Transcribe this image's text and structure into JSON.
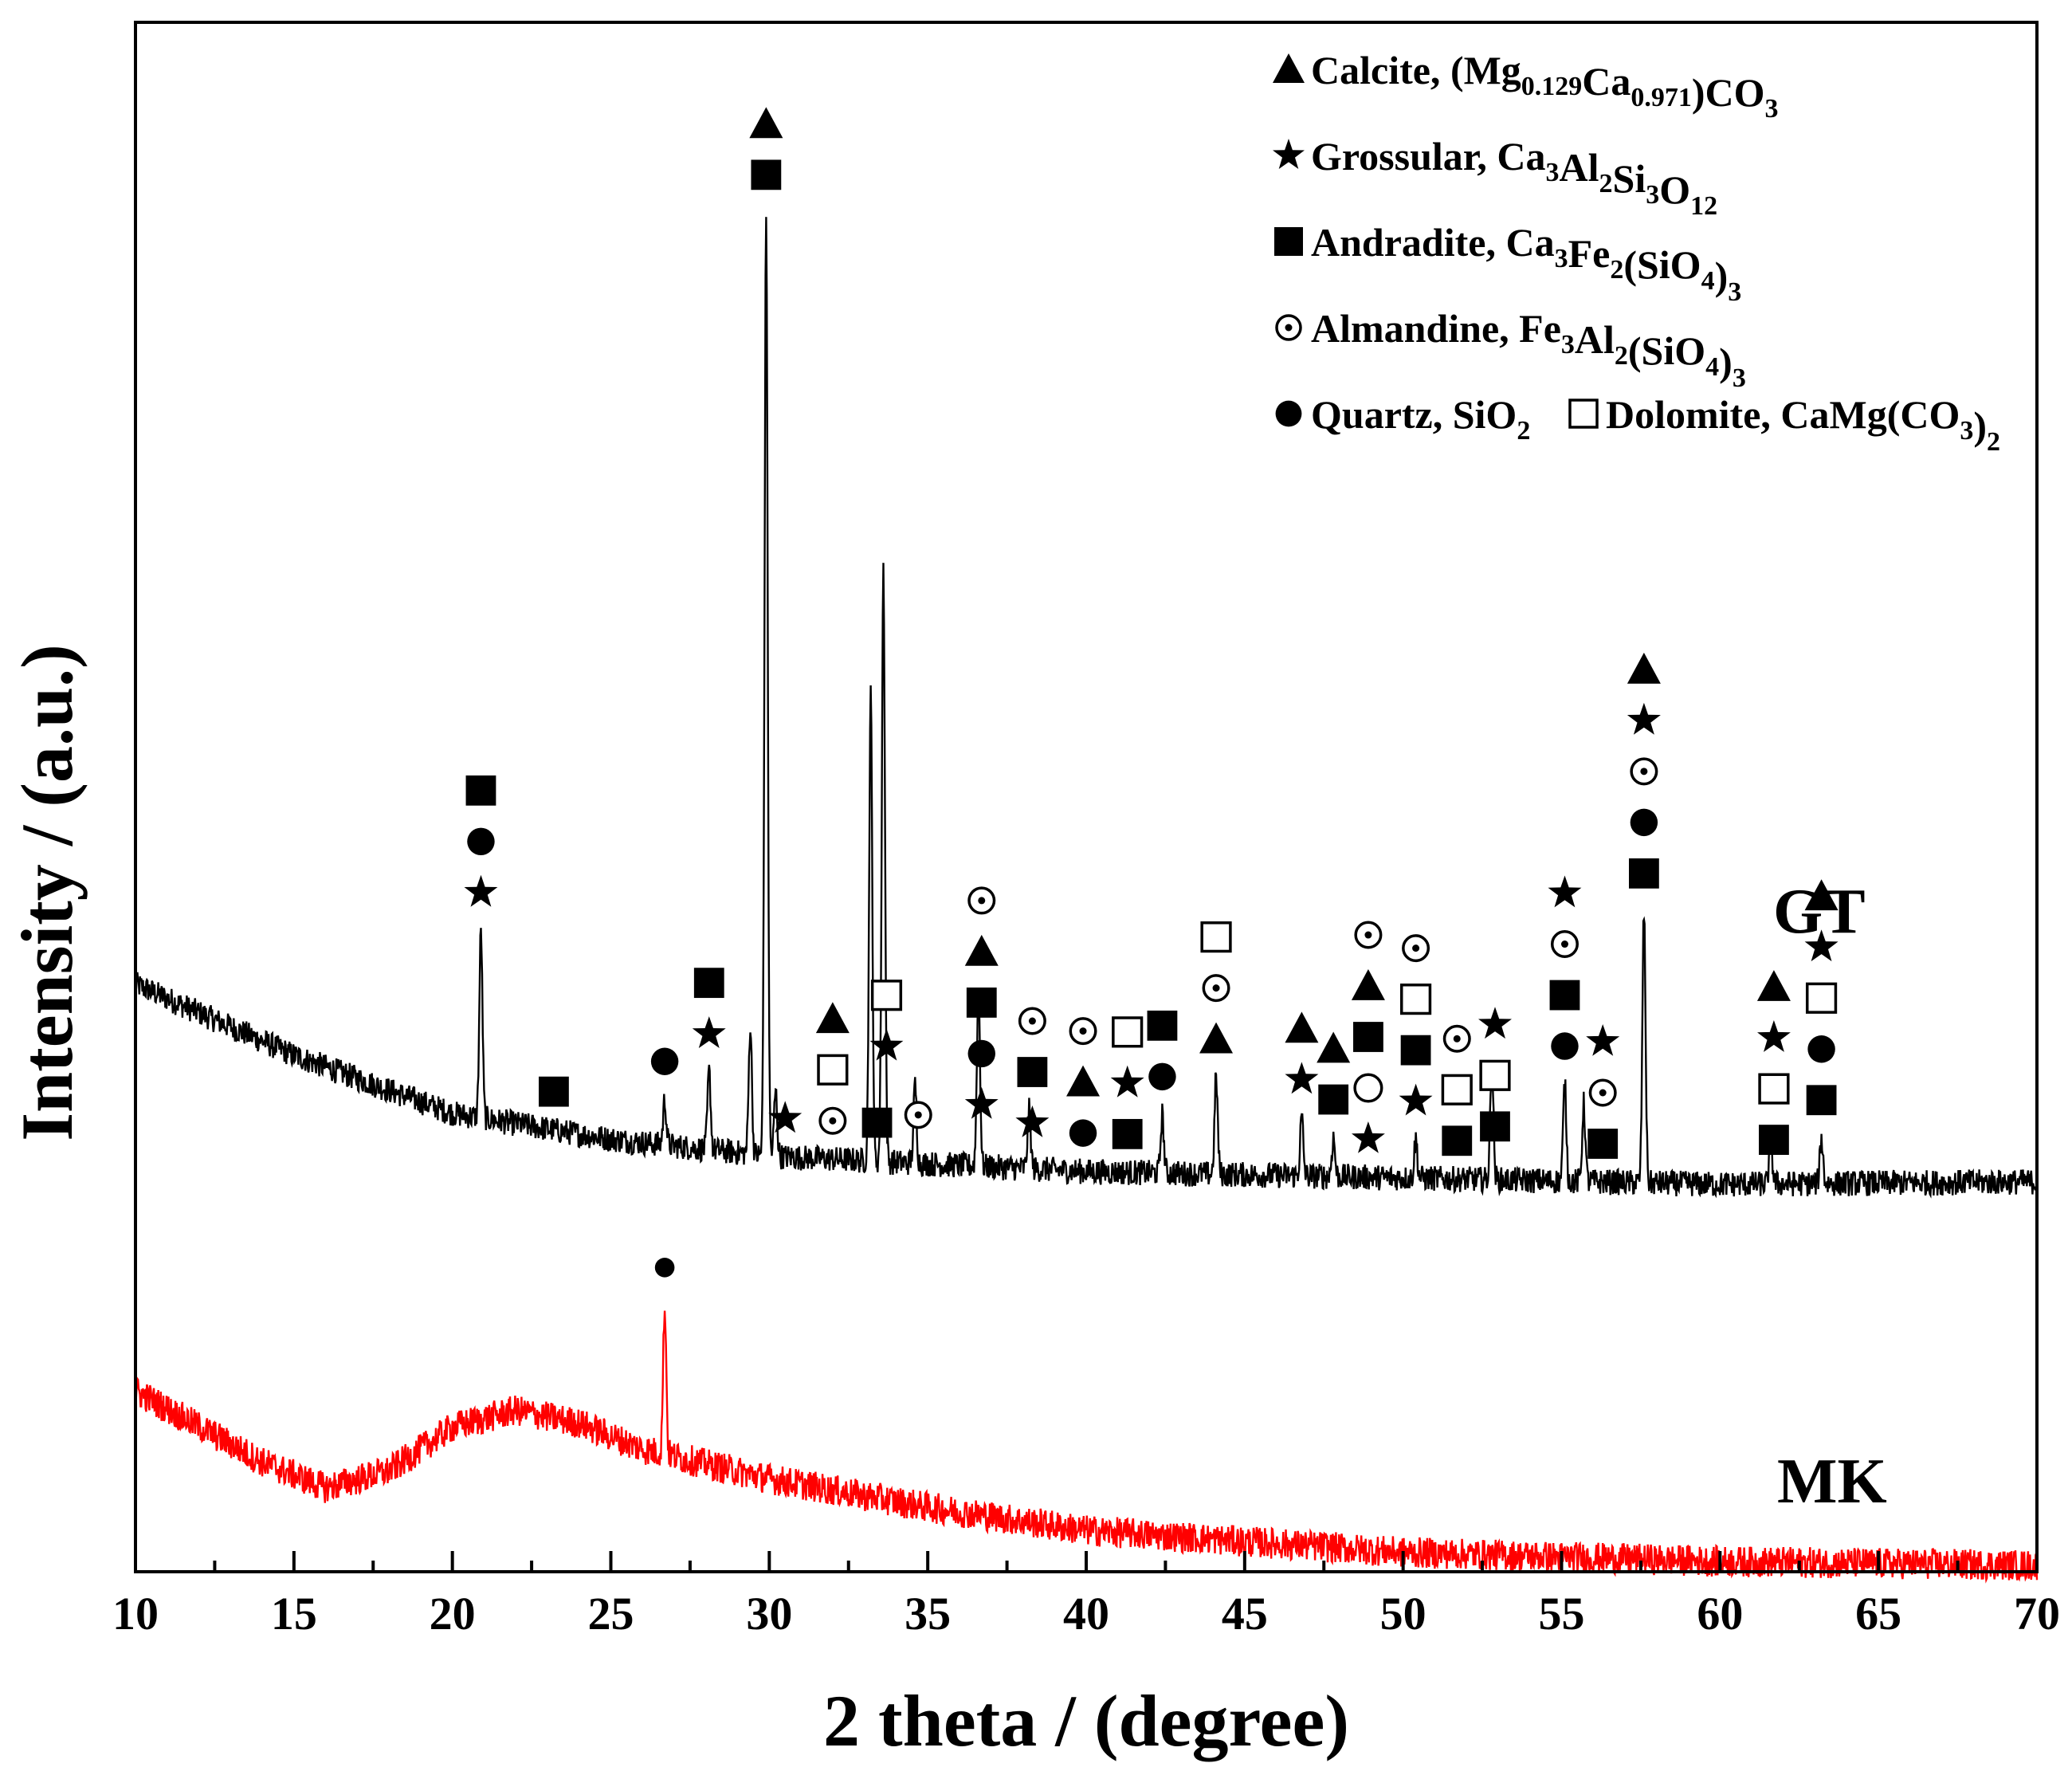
{
  "chart_data": {
    "type": "line",
    "title": "",
    "xlabel": "2 theta / (degree)",
    "ylabel": "Intensity / (a.u.)",
    "xlim": [
      10,
      70
    ],
    "x_ticks": [
      "10",
      "15",
      "20",
      "25",
      "30",
      "35",
      "40",
      "45",
      "50",
      "55",
      "60",
      "65",
      "70"
    ],
    "y_ticks_shown": false,
    "series": [
      {
        "name": "GT",
        "color": "#000000",
        "baseline": [
          [
            10,
            4.55
          ],
          [
            15,
            4.0
          ],
          [
            20,
            3.55
          ],
          [
            25,
            3.35
          ],
          [
            30,
            3.22
          ],
          [
            40,
            3.1
          ],
          [
            50,
            3.05
          ],
          [
            60,
            3.0
          ],
          [
            70,
            3.02
          ]
        ],
        "peaks": [
          {
            "two_theta": 20.9,
            "height": 1.45
          },
          {
            "two_theta": 26.7,
            "height": 0.35
          },
          {
            "two_theta": 28.1,
            "height": 0.6
          },
          {
            "two_theta": 29.4,
            "height": 1.0
          },
          {
            "two_theta": 29.9,
            "height": 7.3
          },
          {
            "two_theta": 30.2,
            "height": 0.5
          },
          {
            "two_theta": 33.2,
            "height": 3.6
          },
          {
            "two_theta": 33.6,
            "height": 4.6
          },
          {
            "two_theta": 34.6,
            "height": 0.6
          },
          {
            "two_theta": 36.6,
            "height": 1.4
          },
          {
            "two_theta": 38.2,
            "height": 0.45
          },
          {
            "two_theta": 42.4,
            "height": 0.45
          },
          {
            "two_theta": 44.1,
            "height": 0.75
          },
          {
            "two_theta": 46.8,
            "height": 0.45
          },
          {
            "two_theta": 47.8,
            "height": 0.3
          },
          {
            "two_theta": 50.4,
            "height": 0.3
          },
          {
            "two_theta": 52.8,
            "height": 0.9
          },
          {
            "two_theta": 55.1,
            "height": 0.75
          },
          {
            "two_theta": 55.7,
            "height": 0.6
          },
          {
            "two_theta": 57.6,
            "height": 2.1
          },
          {
            "two_theta": 61.6,
            "height": 0.35
          },
          {
            "two_theta": 63.2,
            "height": 0.35
          }
        ]
      },
      {
        "name": "MK",
        "color": "#ff0000",
        "baseline": [
          [
            10,
            1.4
          ],
          [
            14,
            0.85
          ],
          [
            16,
            0.65
          ],
          [
            18,
            0.78
          ],
          [
            20,
            1.12
          ],
          [
            22,
            1.25
          ],
          [
            24,
            1.15
          ],
          [
            26,
            0.95
          ],
          [
            30,
            0.72
          ],
          [
            35,
            0.5
          ],
          [
            40,
            0.32
          ],
          [
            50,
            0.15
          ],
          [
            60,
            0.08
          ],
          [
            70,
            0.05
          ]
        ],
        "peaks": [
          {
            "two_theta": 26.7,
            "height": 1.15
          }
        ]
      }
    ],
    "series_labels": [
      "GT",
      "MK"
    ],
    "legend": {
      "placement": "top-right",
      "entries": [
        {
          "marker": "triangle",
          "name": "Calcite",
          "formula": [
            [
              "(Mg",
              ""
            ],
            [
              "0.129",
              "sub"
            ],
            [
              "Ca",
              ""
            ],
            [
              "0.971",
              "sub"
            ],
            [
              ")CO",
              ""
            ],
            [
              "3",
              "sub"
            ]
          ]
        },
        {
          "marker": "star",
          "name": "Grossular",
          "formula": [
            [
              "Ca",
              ""
            ],
            [
              "3",
              "sub"
            ],
            [
              "Al",
              ""
            ],
            [
              "2",
              "sub"
            ],
            [
              "Si",
              ""
            ],
            [
              "3",
              "sub"
            ],
            [
              "O",
              ""
            ],
            [
              "12",
              "sub"
            ]
          ]
        },
        {
          "marker": "square",
          "name": "Andradite",
          "formula": [
            [
              "Ca",
              ""
            ],
            [
              "3",
              "sub"
            ],
            [
              "Fe",
              ""
            ],
            [
              "2",
              "sub"
            ],
            [
              "(SiO",
              ""
            ],
            [
              "4",
              "sub"
            ],
            [
              ")",
              ""
            ],
            [
              "3",
              "sub"
            ]
          ]
        },
        {
          "marker": "dotted-circle",
          "name": "Almandine",
          "formula": [
            [
              "Fe",
              ""
            ],
            [
              "3",
              "sub"
            ],
            [
              "Al",
              ""
            ],
            [
              "2",
              "sub"
            ],
            [
              "(SiO",
              ""
            ],
            [
              "4",
              "sub"
            ],
            [
              ")",
              ""
            ],
            [
              "3",
              "sub"
            ]
          ]
        },
        {
          "marker": "circle",
          "name": "Quartz",
          "formula": [
            [
              "SiO",
              ""
            ],
            [
              "2",
              "sub"
            ]
          ]
        },
        {
          "marker": "open-square",
          "name": "Dolomite",
          "formula": [
            [
              "CaMg(CO",
              ""
            ],
            [
              "3",
              "sub"
            ],
            [
              ")",
              ""
            ],
            [
              "2",
              "sub"
            ]
          ]
        }
      ]
    },
    "phase_markers": [
      {
        "two_theta": 20.9,
        "stack": [
          "star",
          "circle",
          "square"
        ]
      },
      {
        "two_theta": 23.2,
        "stack": [
          "square"
        ]
      },
      {
        "two_theta": 26.7,
        "stack": [
          "circle"
        ]
      },
      {
        "two_theta": 28.1,
        "stack": [
          "star",
          "square"
        ]
      },
      {
        "two_theta": 29.9,
        "stack": [
          "square",
          "triangle"
        ]
      },
      {
        "two_theta": 30.5,
        "stack": [
          "star"
        ]
      },
      {
        "two_theta": 32.0,
        "stack": [
          "dotted-circle",
          "open-square",
          "triangle"
        ]
      },
      {
        "two_theta": 33.4,
        "stack": [
          "square"
        ]
      },
      {
        "two_theta": 33.7,
        "stack": [
          "star",
          "open-square"
        ]
      },
      {
        "two_theta": 34.7,
        "stack": [
          "dotted-circle"
        ]
      },
      {
        "two_theta": 36.7,
        "stack": [
          "star",
          "circle",
          "square",
          "triangle",
          "dotted-circle"
        ]
      },
      {
        "two_theta": 38.3,
        "stack": [
          "star",
          "square",
          "dotted-circle"
        ]
      },
      {
        "two_theta": 39.9,
        "stack": [
          "circle",
          "triangle",
          "dotted-circle"
        ]
      },
      {
        "two_theta": 41.3,
        "stack": [
          "square",
          "star",
          "open-square"
        ]
      },
      {
        "two_theta": 42.4,
        "stack": [
          "circle",
          "square"
        ]
      },
      {
        "two_theta": 44.1,
        "stack": [
          "triangle",
          "dotted-circle",
          "open-square"
        ]
      },
      {
        "two_theta": 46.8,
        "stack": [
          "star",
          "triangle"
        ]
      },
      {
        "two_theta": 47.8,
        "stack": [
          "square",
          "triangle"
        ]
      },
      {
        "two_theta": 48.9,
        "stack": [
          "star",
          "open-circle",
          "square",
          "triangle",
          "dotted-circle"
        ]
      },
      {
        "two_theta": 50.4,
        "stack": [
          "star",
          "square",
          "open-square",
          "dotted-circle"
        ]
      },
      {
        "two_theta": 51.7,
        "stack": [
          "square",
          "open-square",
          "dotted-circle"
        ]
      },
      {
        "two_theta": 52.9,
        "stack": [
          "square",
          "open-square",
          "star"
        ]
      },
      {
        "two_theta": 55.1,
        "stack": [
          "circle",
          "square",
          "dotted-circle",
          "star"
        ]
      },
      {
        "two_theta": 56.3,
        "stack": [
          "square",
          "dotted-circle",
          "star"
        ]
      },
      {
        "two_theta": 57.6,
        "stack": [
          "square",
          "circle",
          "dotted-circle",
          "star",
          "triangle"
        ]
      },
      {
        "two_theta": 61.7,
        "stack": [
          "square",
          "open-square",
          "star",
          "triangle"
        ]
      },
      {
        "two_theta": 63.2,
        "stack": [
          "square",
          "circle",
          "open-square",
          "star",
          "triangle"
        ]
      },
      {
        "two_theta": 26.7,
        "series": "MK",
        "stack": [
          "circle"
        ]
      }
    ]
  }
}
